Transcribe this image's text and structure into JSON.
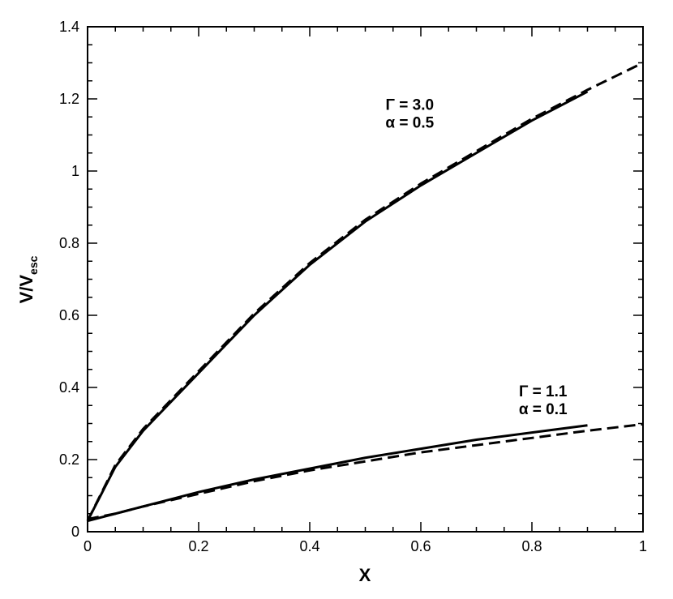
{
  "chart_data": {
    "type": "line",
    "xlabel": "X",
    "ylabel": {
      "text": "V/V",
      "subscript": "esc"
    },
    "x": [
      0,
      0.05,
      0.1,
      0.2,
      0.3,
      0.4,
      0.5,
      0.6,
      0.7,
      0.8,
      0.9,
      1
    ],
    "series": [
      {
        "color": "#000000",
        "style": "solid",
        "values": [
          0.03,
          0.18,
          0.28,
          0.44,
          0.6,
          0.74,
          0.86,
          0.96,
          1.05,
          1.14,
          1.22,
          null
        ]
      },
      {
        "color": "#000000",
        "style": "dashed",
        "values": [
          0.03,
          0.185,
          0.285,
          0.445,
          0.605,
          0.745,
          0.865,
          0.965,
          1.055,
          1.145,
          1.225,
          1.3
        ]
      },
      {
        "color": "#000000",
        "style": "solid",
        "values": [
          0.03,
          0.05,
          0.07,
          0.11,
          0.145,
          0.175,
          0.205,
          0.23,
          0.255,
          0.275,
          0.295,
          null
        ]
      },
      {
        "color": "#000000",
        "style": "dashed",
        "values": [
          0.035,
          0.05,
          0.07,
          0.105,
          0.14,
          0.17,
          0.195,
          0.22,
          0.24,
          0.26,
          0.28,
          0.298
        ]
      }
    ],
    "annotations": [
      {
        "lines": [
          "Γ = 3.0",
          "α = 0.5"
        ],
        "x": 0.58,
        "y": 1.17
      },
      {
        "lines": [
          "Γ = 1.1",
          "α = 0.1"
        ],
        "x": 0.82,
        "y": 0.375
      }
    ],
    "xlim": [
      0,
      1
    ],
    "ylim": [
      0,
      1.4
    ],
    "xticks": [
      0,
      0.2,
      0.4,
      0.6,
      0.8,
      1
    ],
    "yticks": [
      0,
      0.2,
      0.4,
      0.6,
      0.8,
      1,
      1.2,
      1.4
    ],
    "xminorticks": [
      0.05,
      0.1,
      0.15,
      0.25,
      0.3,
      0.35,
      0.45,
      0.5,
      0.55,
      0.65,
      0.7,
      0.75,
      0.85,
      0.9,
      0.95
    ],
    "yminorticks": [
      0.05,
      0.1,
      0.15,
      0.25,
      0.3,
      0.35,
      0.45,
      0.5,
      0.55,
      0.65,
      0.7,
      0.75,
      0.85,
      0.9,
      0.95,
      1.05,
      1.1,
      1.15,
      1.25,
      1.3,
      1.35
    ]
  }
}
